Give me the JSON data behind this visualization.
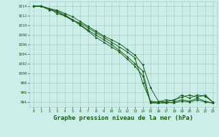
{
  "bg_color": "#cceee8",
  "grid_color": "#aacccc",
  "line_color": "#1a5c1a",
  "marker_color": "#1a5c1a",
  "xlabel": "Graphe pression niveau de la mer (hPa)",
  "xlabel_fontsize": 6.5,
  "xlim": [
    -0.5,
    23.5
  ],
  "ylim": [
    993.0,
    1015.0
  ],
  "yticks": [
    994,
    996,
    998,
    1000,
    1002,
    1004,
    1006,
    1008,
    1010,
    1012,
    1014
  ],
  "xticks": [
    0,
    1,
    2,
    3,
    4,
    5,
    6,
    7,
    8,
    9,
    10,
    11,
    12,
    13,
    14,
    15,
    16,
    17,
    18,
    19,
    20,
    21,
    22,
    23
  ],
  "series": [
    [
      1014,
      1014,
      1013.5,
      1012.5,
      1012.0,
      1011.0,
      1010.5,
      1009.5,
      1008.5,
      1007.5,
      1006.5,
      1005.5,
      1004.5,
      1003.2,
      998.0,
      994.2,
      994.0,
      994.5,
      994.2,
      995.5,
      994.8,
      995.5,
      995.2,
      994.0
    ],
    [
      1014,
      1014,
      1013.2,
      1013.0,
      1012.2,
      1011.2,
      1010.2,
      1009.0,
      1008.0,
      1007.0,
      1006.0,
      1004.8,
      1003.5,
      1002.0,
      1000.5,
      994.0,
      993.8,
      994.0,
      993.8,
      994.2,
      994.0,
      994.5,
      994.0,
      993.8
    ],
    [
      1014,
      1014,
      1013.5,
      1013.2,
      1012.5,
      1011.8,
      1010.8,
      1009.8,
      1008.8,
      1007.8,
      1007.0,
      1006.2,
      1005.0,
      1003.8,
      1001.8,
      997.0,
      994.2,
      994.0,
      994.5,
      995.0,
      995.5,
      995.0,
      995.5,
      994.0
    ],
    [
      1014,
      1014,
      1013.5,
      1012.8,
      1012.0,
      1011.2,
      1010.0,
      1008.8,
      1007.5,
      1006.5,
      1005.5,
      1004.5,
      1003.0,
      1001.5,
      999.5,
      993.8,
      993.8,
      993.8,
      994.0,
      994.5,
      994.2,
      994.8,
      994.2,
      993.8
    ]
  ]
}
